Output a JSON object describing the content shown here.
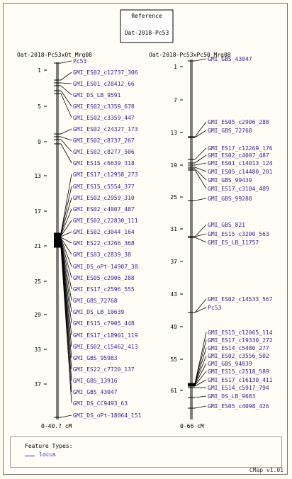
{
  "reference": {
    "title": "Reference",
    "set_name": "Oat-2018-Pc53"
  },
  "maps": [
    {
      "name": "Oat-2018-Pc53xOt_Mrg08",
      "range_label": "0-40.7 cM",
      "ticks": [
        "1",
        "5",
        "9",
        "13",
        "17",
        "21",
        "25",
        "29",
        "33",
        "37"
      ],
      "features": [
        "Pc53",
        "GMI_ES02_c12737_306",
        "GMI_ES01_c28412_66",
        "GMI_DS_LB_9591",
        "GMI_ES02_c3359_678",
        "GMI_ES02_c3359_447",
        "GMI_ES02_c24327_173",
        "GMI_ES02_c8737_267",
        "GMI_ES02_c8277_506",
        "GMI_ES15_c6639_318",
        "GMI_ES17_c12958_273",
        "GMI_ES15_c5554_377",
        "GMI_ES02_c2959_310",
        "GMI_ES02_c4007_487",
        "GMI_ES02_c22830_111",
        "GMI_ES02_c3044_164",
        "GMI_ES22_c3266_368",
        "GMI_ES03_c2839_38",
        "GMI_DS_oPt-14907_38",
        "GMI_ES05_c2906_288",
        "GMI_ES17_c2596_555",
        "GMI_GBS_72768",
        "GMI_DS_LB_10639",
        "GMI_ES15_c7905_448",
        "GMI_ES17_c18901_119",
        "GMI_ES02_c15462_413",
        "GMI_GBS_95983",
        "GMI_ES22_c7720_137",
        "GMI_GBS_13916",
        "GMI_GBS_43047",
        "GMI_DS_CC9493_63",
        "GMI_DS_oPt-18064_151"
      ]
    },
    {
      "name": "Oat-2018-Pc53xPc50_Mrg08",
      "range_label": "0-66 cM",
      "ticks": [
        "1",
        "7",
        "13",
        "19",
        "25",
        "31",
        "37",
        "43",
        "49",
        "55",
        "61"
      ],
      "features": [
        "GMI_GBS_43047",
        "GMI_ES05_c2906_288",
        "GMI_GBS_72768",
        "GMI_ES17_c12269_176",
        "GMI_ES02_c4007_487",
        "GMI_ES01_c14013_124",
        "GMI_ES05_c14480_201",
        "GMI_GBS_99439",
        "GMI_ES17_c3104_489",
        "GMI_GBS_99288",
        "GMI_GBS_821",
        "GMI_ES15_c3200_563",
        "GMI_ES_LB_11757",
        "GMI_ES02_c14533_567",
        "Pc53",
        "GMI_ES15_c12065_114",
        "GMI_ES17_c19330_272",
        "GMI_ES14_c5480_277",
        "GMI_ES02_c3556_502",
        "GMI_GBS_94839",
        "GMI_ES15_c2518_589",
        "GMI_ES17_c16130_411",
        "GMI_ES14_c5917_794",
        "GMI_DS_LB_9683",
        "GMI_ES05_c4098_426"
      ]
    }
  ],
  "legend": {
    "title": "Feature Types:",
    "item": "locus"
  },
  "version": "CMap v1.01",
  "colors": {
    "feature": "#3a1a9a",
    "axis": "#000000",
    "connector": "#000000"
  }
}
